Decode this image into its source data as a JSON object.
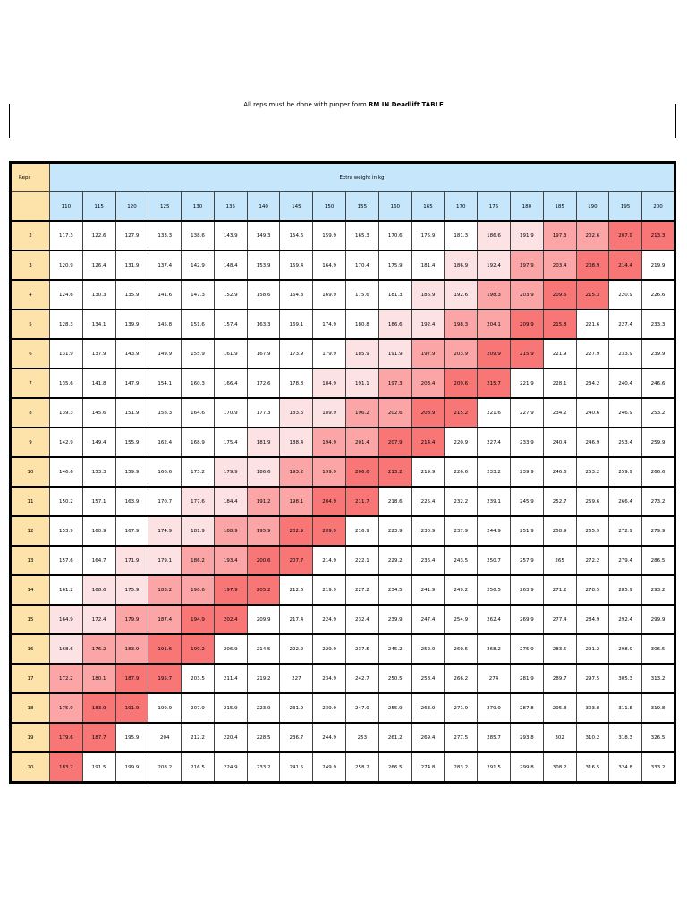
{
  "title": {
    "prefix": "All reps must be done with proper form ",
    "bold": "RM IN Deadlift TABLE"
  },
  "table": {
    "reps_label": "Reps",
    "extra_label": "Extra weight in kg",
    "weights": [
      "110",
      "115",
      "120",
      "125",
      "130",
      "135",
      "140",
      "145",
      "150",
      "155",
      "160",
      "165",
      "170",
      "175",
      "180",
      "185",
      "190",
      "195",
      "200"
    ],
    "rows": [
      {
        "reps": "2",
        "values": [
          "117.3",
          "122.6",
          "127.9",
          "133.3",
          "138.6",
          "143.9",
          "149.3",
          "154.6",
          "159.9",
          "165.3",
          "170.6",
          "175.9",
          "181.3",
          "186.6",
          "191.9",
          "197.3",
          "202.6",
          "207.9",
          "213.3"
        ],
        "levels": [
          0,
          0,
          0,
          0,
          0,
          0,
          0,
          0,
          0,
          0,
          0,
          0,
          0,
          1,
          1,
          2,
          2,
          3,
          3
        ]
      },
      {
        "reps": "3",
        "values": [
          "120.9",
          "126.4",
          "131.9",
          "137.4",
          "142.9",
          "148.4",
          "153.9",
          "159.4",
          "164.9",
          "170.4",
          "175.9",
          "181.4",
          "186.9",
          "192.4",
          "197.9",
          "203.4",
          "208.9",
          "214.4",
          "219.9"
        ],
        "levels": [
          0,
          0,
          0,
          0,
          0,
          0,
          0,
          0,
          0,
          0,
          0,
          0,
          1,
          1,
          2,
          2,
          3,
          3,
          0
        ]
      },
      {
        "reps": "4",
        "values": [
          "124.6",
          "130.3",
          "135.9",
          "141.6",
          "147.3",
          "152.9",
          "158.6",
          "164.3",
          "169.9",
          "175.6",
          "181.3",
          "186.9",
          "192.6",
          "198.3",
          "203.9",
          "209.6",
          "215.3",
          "220.9",
          "226.6"
        ],
        "levels": [
          0,
          0,
          0,
          0,
          0,
          0,
          0,
          0,
          0,
          0,
          0,
          1,
          1,
          2,
          2,
          3,
          3,
          0,
          0
        ]
      },
      {
        "reps": "5",
        "values": [
          "128.3",
          "134.1",
          "139.9",
          "145.8",
          "151.6",
          "157.4",
          "163.3",
          "169.1",
          "174.9",
          "180.8",
          "186.6",
          "192.4",
          "198.3",
          "204.1",
          "209.9",
          "215.8",
          "221.6",
          "227.4",
          "233.3"
        ],
        "levels": [
          0,
          0,
          0,
          0,
          0,
          0,
          0,
          0,
          0,
          0,
          1,
          1,
          2,
          2,
          3,
          3,
          0,
          0,
          0
        ]
      },
      {
        "reps": "6",
        "values": [
          "131.9",
          "137.9",
          "143.9",
          "149.9",
          "155.9",
          "161.9",
          "167.9",
          "173.9",
          "179.9",
          "185.9",
          "191.9",
          "197.9",
          "203.9",
          "209.9",
          "215.9",
          "221.9",
          "227.9",
          "233.9",
          "239.9"
        ],
        "levels": [
          0,
          0,
          0,
          0,
          0,
          0,
          0,
          0,
          0,
          1,
          1,
          2,
          2,
          3,
          3,
          0,
          0,
          0,
          0
        ]
      },
      {
        "reps": "7",
        "values": [
          "135.6",
          "141.8",
          "147.9",
          "154.1",
          "160.3",
          "166.4",
          "172.6",
          "178.8",
          "184.9",
          "191.1",
          "197.3",
          "203.4",
          "209.6",
          "215.7",
          "221.9",
          "228.1",
          "234.2",
          "240.4",
          "246.6"
        ],
        "levels": [
          0,
          0,
          0,
          0,
          0,
          0,
          0,
          0,
          1,
          1,
          2,
          2,
          3,
          3,
          0,
          0,
          0,
          0,
          0
        ]
      },
      {
        "reps": "8",
        "values": [
          "139.3",
          "145.6",
          "151.9",
          "158.3",
          "164.6",
          "170.9",
          "177.3",
          "183.6",
          "189.9",
          "196.2",
          "202.6",
          "208.9",
          "215.2",
          "221.6",
          "227.9",
          "234.2",
          "240.6",
          "246.9",
          "253.2"
        ],
        "levels": [
          0,
          0,
          0,
          0,
          0,
          0,
          0,
          1,
          1,
          2,
          2,
          3,
          3,
          0,
          0,
          0,
          0,
          0,
          0
        ]
      },
      {
        "reps": "9",
        "values": [
          "142.9",
          "149.4",
          "155.9",
          "162.4",
          "168.9",
          "175.4",
          "181.9",
          "188.4",
          "194.9",
          "201.4",
          "207.9",
          "214.4",
          "220.9",
          "227.4",
          "233.9",
          "240.4",
          "246.9",
          "253.4",
          "259.9"
        ],
        "levels": [
          0,
          0,
          0,
          0,
          0,
          0,
          1,
          1,
          2,
          2,
          3,
          3,
          0,
          0,
          0,
          0,
          0,
          0,
          0
        ]
      },
      {
        "reps": "10",
        "values": [
          "146.6",
          "153.3",
          "159.9",
          "166.6",
          "173.2",
          "179.9",
          "186.6",
          "193.2",
          "199.9",
          "206.6",
          "213.2",
          "219.9",
          "226.6",
          "233.2",
          "239.9",
          "246.6",
          "253.2",
          "259.9",
          "266.6"
        ],
        "levels": [
          0,
          0,
          0,
          0,
          0,
          1,
          1,
          2,
          2,
          3,
          3,
          0,
          0,
          0,
          0,
          0,
          0,
          0,
          0
        ]
      },
      {
        "reps": "11",
        "values": [
          "150.2",
          "157.1",
          "163.9",
          "170.7",
          "177.6",
          "184.4",
          "191.2",
          "198.1",
          "204.9",
          "211.7",
          "218.6",
          "225.4",
          "232.2",
          "239.1",
          "245.9",
          "252.7",
          "259.6",
          "266.4",
          "273.2"
        ],
        "levels": [
          0,
          0,
          0,
          0,
          1,
          1,
          2,
          2,
          3,
          3,
          0,
          0,
          0,
          0,
          0,
          0,
          0,
          0,
          0
        ]
      },
      {
        "reps": "12",
        "values": [
          "153.9",
          "160.9",
          "167.9",
          "174.9",
          "181.9",
          "188.9",
          "195.9",
          "202.9",
          "209.9",
          "216.9",
          "223.9",
          "230.9",
          "237.9",
          "244.9",
          "251.9",
          "258.9",
          "265.9",
          "272.9",
          "279.9"
        ],
        "levels": [
          0,
          0,
          0,
          1,
          1,
          2,
          2,
          3,
          3,
          0,
          0,
          0,
          0,
          0,
          0,
          0,
          0,
          0,
          0
        ]
      },
      {
        "reps": "13",
        "values": [
          "157.6",
          "164.7",
          "171.9",
          "179.1",
          "186.2",
          "193.4",
          "200.6",
          "207.7",
          "214.9",
          "222.1",
          "229.2",
          "236.4",
          "243.5",
          "250.7",
          "257.9",
          "265",
          "272.2",
          "279.4",
          "286.5"
        ],
        "levels": [
          0,
          0,
          1,
          1,
          2,
          2,
          3,
          3,
          0,
          0,
          0,
          0,
          0,
          0,
          0,
          0,
          0,
          0,
          0
        ]
      },
      {
        "reps": "14",
        "values": [
          "161.2",
          "168.6",
          "175.9",
          "183.2",
          "190.6",
          "197.9",
          "205.2",
          "212.6",
          "219.9",
          "227.2",
          "234.5",
          "241.9",
          "249.2",
          "256.5",
          "263.9",
          "271.2",
          "278.5",
          "285.9",
          "293.2"
        ],
        "levels": [
          0,
          1,
          1,
          2,
          2,
          3,
          3,
          0,
          0,
          0,
          0,
          0,
          0,
          0,
          0,
          0,
          0,
          0,
          0
        ]
      },
      {
        "reps": "15",
        "values": [
          "164.9",
          "172.4",
          "179.9",
          "187.4",
          "194.9",
          "202.4",
          "209.9",
          "217.4",
          "224.9",
          "232.4",
          "239.9",
          "247.4",
          "254.9",
          "262.4",
          "269.9",
          "277.4",
          "284.9",
          "292.4",
          "299.9"
        ],
        "levels": [
          1,
          1,
          2,
          2,
          3,
          3,
          0,
          0,
          0,
          0,
          0,
          0,
          0,
          0,
          0,
          0,
          0,
          0,
          0
        ]
      },
      {
        "reps": "16",
        "values": [
          "168.6",
          "176.2",
          "183.9",
          "191.6",
          "199.2",
          "206.9",
          "214.5",
          "222.2",
          "229.9",
          "237.5",
          "245.2",
          "252.9",
          "260.5",
          "268.2",
          "275.9",
          "283.5",
          "291.2",
          "298.9",
          "306.5"
        ],
        "levels": [
          1,
          2,
          2,
          3,
          3,
          0,
          0,
          0,
          0,
          0,
          0,
          0,
          0,
          0,
          0,
          0,
          0,
          0,
          0
        ]
      },
      {
        "reps": "17",
        "values": [
          "172.2",
          "180.1",
          "187.9",
          "195.7",
          "203.5",
          "211.4",
          "219.2",
          "227",
          "234.9",
          "242.7",
          "250.5",
          "258.4",
          "266.2",
          "274",
          "281.9",
          "289.7",
          "297.5",
          "305.3",
          "313.2"
        ],
        "levels": [
          2,
          2,
          3,
          3,
          0,
          0,
          0,
          0,
          0,
          0,
          0,
          0,
          0,
          0,
          0,
          0,
          0,
          0,
          0
        ]
      },
      {
        "reps": "18",
        "values": [
          "175.9",
          "183.9",
          "191.9",
          "199.9",
          "207.9",
          "215.9",
          "223.9",
          "231.9",
          "239.9",
          "247.9",
          "255.9",
          "263.9",
          "271.9",
          "279.9",
          "287.8",
          "295.8",
          "303.8",
          "311.8",
          "319.8"
        ],
        "levels": [
          2,
          3,
          3,
          0,
          0,
          0,
          0,
          0,
          0,
          0,
          0,
          0,
          0,
          0,
          0,
          0,
          0,
          0,
          0
        ]
      },
      {
        "reps": "19",
        "values": [
          "179.6",
          "187.7",
          "195.9",
          "204",
          "212.2",
          "220.4",
          "228.5",
          "236.7",
          "244.9",
          "253",
          "261.2",
          "269.4",
          "277.5",
          "285.7",
          "293.8",
          "302",
          "310.2",
          "318.3",
          "326.5"
        ],
        "levels": [
          3,
          3,
          0,
          0,
          0,
          0,
          0,
          0,
          0,
          0,
          0,
          0,
          0,
          0,
          0,
          0,
          0,
          0,
          0
        ]
      },
      {
        "reps": "20",
        "values": [
          "183.2",
          "191.5",
          "199.9",
          "208.2",
          "216.5",
          "224.9",
          "233.2",
          "241.5",
          "249.9",
          "258.2",
          "266.5",
          "274.8",
          "283.2",
          "291.5",
          "299.8",
          "308.2",
          "316.5",
          "324.8",
          "333.2"
        ],
        "levels": [
          3,
          0,
          0,
          0,
          0,
          0,
          0,
          0,
          0,
          0,
          0,
          0,
          0,
          0,
          0,
          0,
          0,
          0,
          0
        ]
      }
    ]
  },
  "colors": {
    "reps_bg": "#fde3aa",
    "header_bg": "#c6e6fb",
    "level1": "#fde2e3",
    "level2": "#fba5a6",
    "level3": "#f97677"
  }
}
